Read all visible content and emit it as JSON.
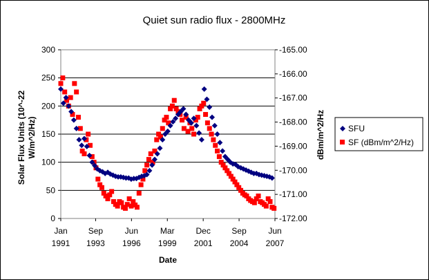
{
  "chart_data": {
    "type": "scatter",
    "title": "Quiet sun radio flux - 2800MHz",
    "xlabel": "Date",
    "ylabel": "Solar Flux Units (10^-22 W/m^2/Hz)",
    "y2label": "dBm/m^2/Hz",
    "ylim": [
      0,
      300
    ],
    "y2lim": [
      -172.0,
      -165.0
    ],
    "grid": true,
    "legend_position": "right",
    "x_ticks": [
      {
        "year": 1991.0,
        "line1": "Jan",
        "line2": "1991"
      },
      {
        "year": 1993.67,
        "line1": "Sep",
        "line2": "1993"
      },
      {
        "year": 1996.42,
        "line1": "Jun",
        "line2": "1996"
      },
      {
        "year": 1999.17,
        "line1": "Mar",
        "line2": "1999"
      },
      {
        "year": 2001.92,
        "line1": "Dec",
        "line2": "2001"
      },
      {
        "year": 2004.67,
        "line1": "Sep",
        "line2": "2004"
      },
      {
        "year": 2007.42,
        "line1": "Jun",
        "line2": "2007"
      }
    ],
    "y_ticks": [
      0,
      50,
      100,
      150,
      200,
      250,
      300
    ],
    "y2_ticks": [
      "-172.00",
      "-171.00",
      "-170.00",
      "-169.00",
      "-168.00",
      "-167.00",
      "-166.00",
      "-165.00"
    ],
    "x_range": [
      1991.0,
      2007.42
    ],
    "series": [
      {
        "name": "SFU",
        "color": "#000080",
        "marker": "diamond",
        "x": [
          1991.0,
          1991.2,
          1991.4,
          1991.6,
          1991.8,
          1992.0,
          1992.2,
          1992.4,
          1992.6,
          1992.8,
          1993.0,
          1993.2,
          1993.4,
          1993.6,
          1993.8,
          1994.0,
          1994.2,
          1994.4,
          1994.6,
          1994.8,
          1995.0,
          1995.2,
          1995.4,
          1995.6,
          1995.8,
          1996.0,
          1996.2,
          1996.4,
          1996.6,
          1996.8,
          1997.0,
          1997.2,
          1997.4,
          1997.6,
          1997.8,
          1998.0,
          1998.2,
          1998.4,
          1998.6,
          1998.8,
          1999.0,
          1999.2,
          1999.4,
          1999.6,
          1999.8,
          2000.0,
          2000.2,
          2000.4,
          2000.6,
          2000.8,
          2001.0,
          2001.2,
          2001.4,
          2001.6,
          2001.8,
          2002.0,
          2002.2,
          2002.4,
          2002.6,
          2002.8,
          2003.0,
          2003.2,
          2003.4,
          2003.6,
          2003.8,
          2004.0,
          2004.2,
          2004.4,
          2004.6,
          2004.8,
          2005.0,
          2005.2,
          2005.4,
          2005.6,
          2005.8,
          2006.0,
          2006.2,
          2006.4,
          2006.6,
          2006.8,
          2007.0,
          2007.2
        ],
        "y": [
          230,
          205,
          215,
          200,
          190,
          175,
          160,
          140,
          130,
          142,
          128,
          112,
          100,
          94,
          88,
          85,
          83,
          80,
          82,
          79,
          77,
          75,
          74,
          74,
          73,
          72,
          72,
          70,
          71,
          71,
          73,
          75,
          76,
          78,
          85,
          95,
          105,
          115,
          125,
          140,
          150,
          155,
          165,
          172,
          178,
          185,
          190,
          195,
          185,
          175,
          170,
          178,
          165,
          152,
          140,
          230,
          212,
          198,
          180,
          165,
          150,
          135,
          120,
          110,
          105,
          100,
          97,
          96,
          92,
          90,
          88,
          86,
          84,
          82,
          80,
          80,
          78,
          77,
          76,
          75,
          74,
          72
        ]
      },
      {
        "name": "SF (dBm/m^2/Hz)",
        "color": "#ff0000",
        "marker": "square",
        "x": [
          1991.0,
          1991.15,
          1991.3,
          1991.45,
          1991.6,
          1991.75,
          1991.9,
          1992.05,
          1992.2,
          1992.35,
          1992.5,
          1992.65,
          1992.8,
          1992.95,
          1993.1,
          1993.25,
          1993.4,
          1993.55,
          1993.7,
          1993.85,
          1994.0,
          1994.15,
          1994.3,
          1994.45,
          1994.6,
          1994.75,
          1994.9,
          1995.05,
          1995.2,
          1995.35,
          1995.5,
          1995.65,
          1995.8,
          1995.95,
          1996.1,
          1996.25,
          1996.4,
          1996.55,
          1996.7,
          1996.85,
          1997.0,
          1997.15,
          1997.3,
          1997.45,
          1997.6,
          1997.75,
          1997.9,
          1998.05,
          1998.2,
          1998.35,
          1998.5,
          1998.65,
          1998.8,
          1998.95,
          1999.1,
          1999.25,
          1999.4,
          1999.55,
          1999.7,
          1999.85,
          2000.0,
          2000.15,
          2000.3,
          2000.45,
          2000.6,
          2000.75,
          2000.9,
          2001.05,
          2001.2,
          2001.35,
          2001.5,
          2001.65,
          2001.8,
          2001.95,
          2002.1,
          2002.25,
          2002.4,
          2002.55,
          2002.7,
          2002.85,
          2003.0,
          2003.15,
          2003.3,
          2003.45,
          2003.6,
          2003.75,
          2003.9,
          2004.05,
          2004.2,
          2004.35,
          2004.5,
          2004.65,
          2004.8,
          2004.95,
          2005.1,
          2005.25,
          2005.4,
          2005.55,
          2005.7,
          2005.85,
          2006.0,
          2006.15,
          2006.3,
          2006.45,
          2006.6,
          2006.75,
          2006.9,
          2007.05,
          2007.2,
          2007.35
        ],
        "y": [
          240,
          250,
          225,
          210,
          200,
          215,
          185,
          240,
          225,
          180,
          160,
          120,
          115,
          140,
          150,
          130,
          110,
          100,
          90,
          70,
          60,
          55,
          45,
          40,
          35,
          42,
          48,
          30,
          25,
          22,
          30,
          28,
          20,
          18,
          25,
          35,
          22,
          30,
          24,
          20,
          45,
          60,
          70,
          85,
          95,
          105,
          115,
          100,
          120,
          140,
          150,
          145,
          160,
          175,
          180,
          170,
          195,
          200,
          210,
          195,
          190,
          185,
          175,
          160,
          180,
          155,
          170,
          160,
          150,
          175,
          180,
          195,
          200,
          205,
          185,
          170,
          160,
          150,
          140,
          130,
          120,
          110,
          100,
          95,
          90,
          85,
          80,
          75,
          70,
          65,
          60,
          55,
          50,
          45,
          42,
          40,
          35,
          32,
          30,
          28,
          35,
          40,
          30,
          28,
          25,
          22,
          35,
          30,
          20,
          18
        ]
      }
    ]
  }
}
